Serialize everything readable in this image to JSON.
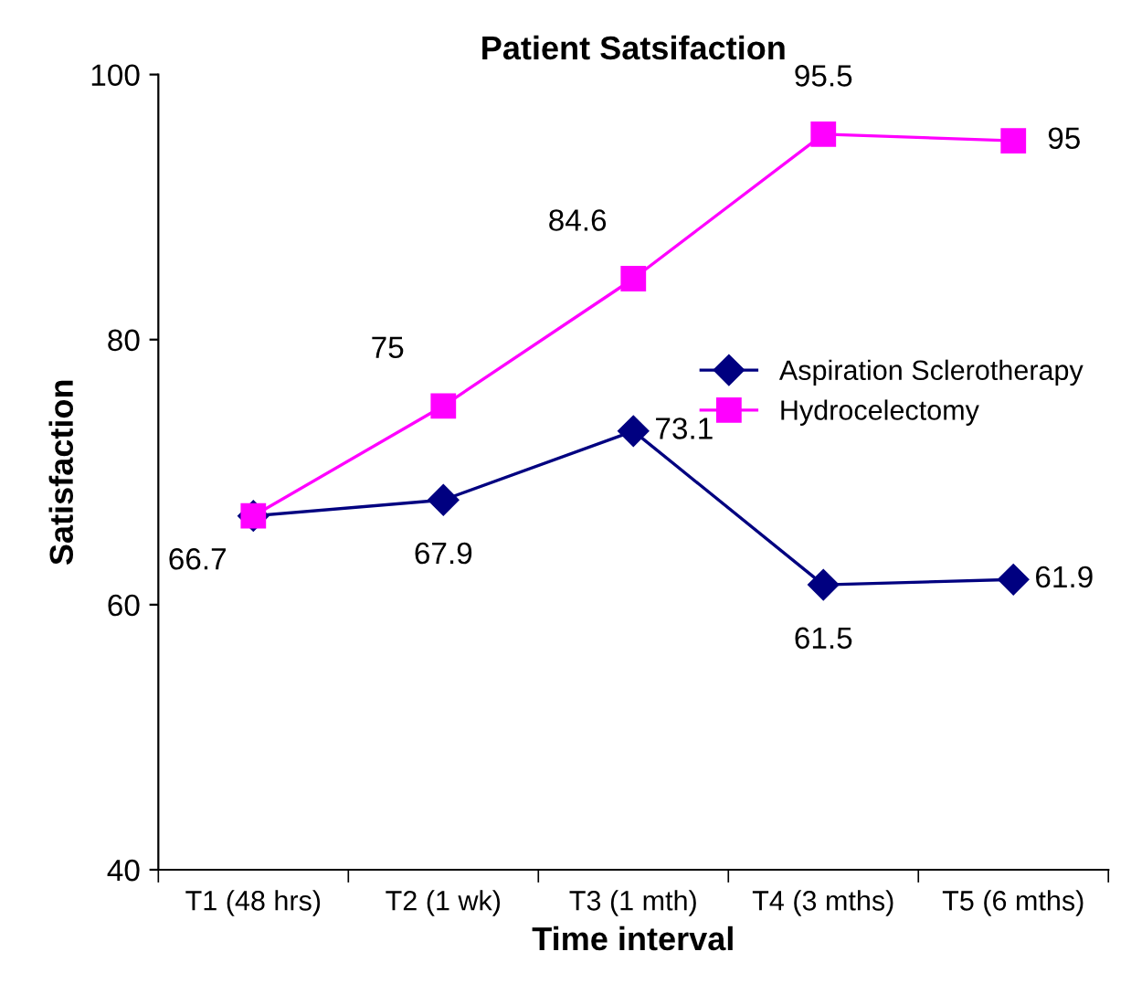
{
  "chart_data": {
    "type": "line",
    "title": "Patient Satsifaction",
    "xlabel": "Time interval",
    "ylabel": "Satisfaction",
    "categories": [
      "T1 (48 hrs)",
      "T2 (1 wk)",
      "T3 (1 mth)",
      "T4 (3 mths)",
      "T5 (6 mths)"
    ],
    "series": [
      {
        "name": "Aspiration Sclerotherapy",
        "color": "#000080",
        "marker": "diamond",
        "values": [
          66.7,
          67.9,
          73.1,
          61.5,
          61.9
        ],
        "value_labels": [
          "66.7",
          "67.9",
          "73.1",
          "61.5",
          "61.9"
        ]
      },
      {
        "name": "Hydrocelectomy",
        "color": "#ff00ff",
        "marker": "square",
        "values": [
          66.7,
          75,
          84.6,
          95.5,
          95
        ],
        "value_labels": [
          null,
          "75",
          "84.6",
          "95.5",
          "95"
        ]
      }
    ],
    "ylim": [
      40,
      100
    ],
    "yticks": [
      40,
      60,
      80,
      100
    ],
    "grid": false,
    "legend": "right",
    "line_style": "solid"
  }
}
